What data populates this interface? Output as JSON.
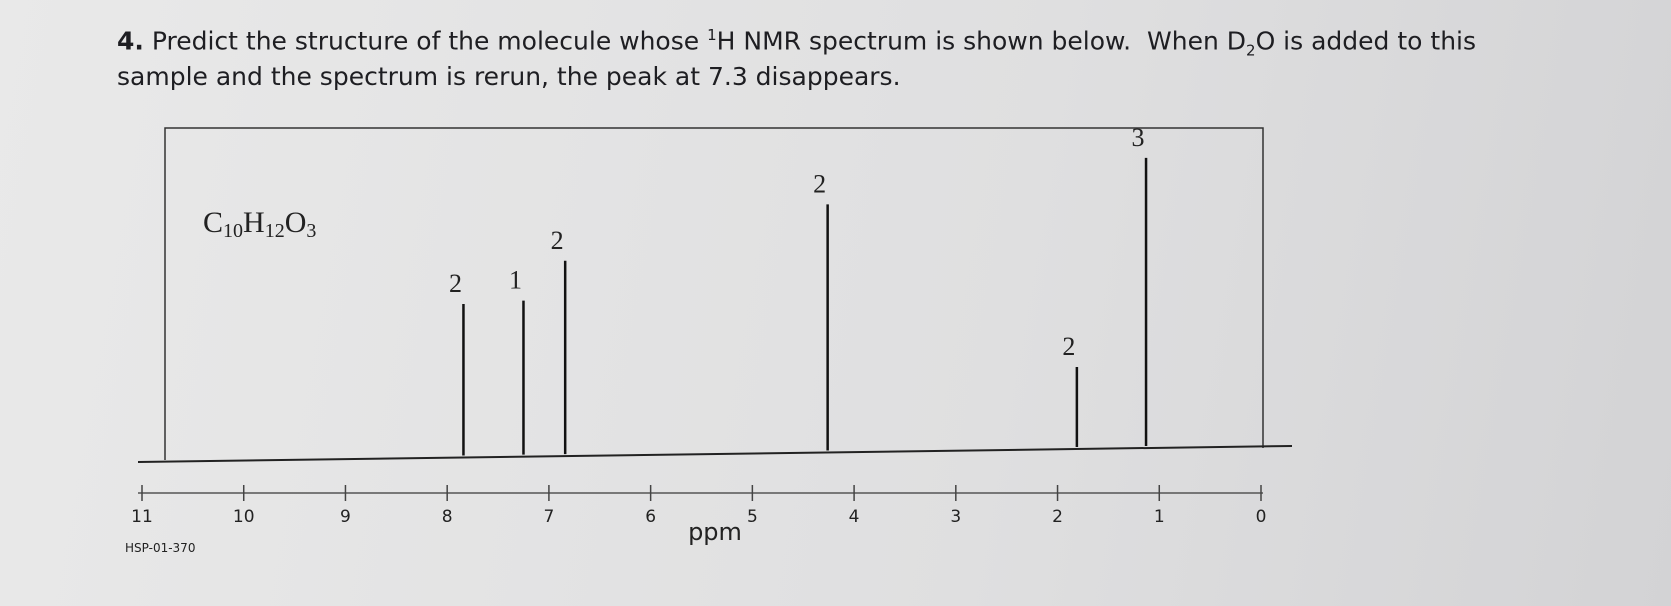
{
  "question": {
    "number": "4.",
    "line1": [
      "Predict the structure of the molecule whose ",
      "1",
      "H NMR spectrum is shown below.  When D",
      "2",
      "O is added to this"
    ],
    "line2": "sample and the spectrum is rerun, the peak at 7.3 disappears."
  },
  "chart_data": {
    "type": "nmr",
    "formula": [
      "C",
      "10",
      "H",
      "12",
      "O",
      "3"
    ],
    "x_label": "ppm",
    "code": "HSP-01-370",
    "xlim": [
      11,
      0
    ],
    "xticks": [
      11,
      10,
      9,
      8,
      7,
      6,
      5,
      4,
      3,
      2,
      1,
      0
    ],
    "ylim": [
      0,
      100
    ],
    "peaks": [
      {
        "ppm": 7.84,
        "intensity": 47,
        "integration": "2"
      },
      {
        "ppm": 7.25,
        "intensity": 48,
        "integration": "1"
      },
      {
        "ppm": 6.84,
        "intensity": 60,
        "integration": "2"
      },
      {
        "ppm": 4.26,
        "intensity": 77,
        "integration": "2"
      },
      {
        "ppm": 1.81,
        "intensity": 28,
        "integration": "2"
      },
      {
        "ppm": 1.13,
        "intensity": 91,
        "integration": "3"
      }
    ]
  }
}
